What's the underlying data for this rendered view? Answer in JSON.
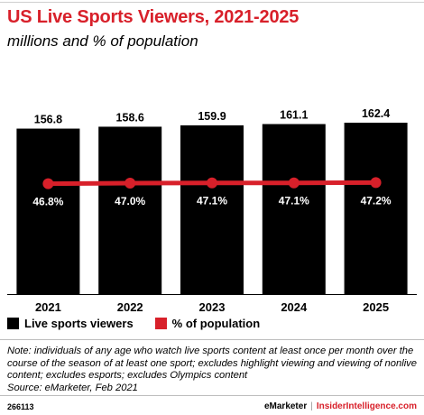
{
  "header": {
    "title": "US Live Sports Viewers, 2021-2025",
    "subtitle": "millions and % of population"
  },
  "colors": {
    "accent": "#d8202a",
    "bar": "#000000",
    "text": "#000000"
  },
  "chart_data": {
    "type": "bar",
    "categories": [
      "2021",
      "2022",
      "2023",
      "2024",
      "2025"
    ],
    "series": [
      {
        "name": "Live sports viewers",
        "values": [
          156.8,
          158.6,
          159.9,
          161.1,
          162.4
        ],
        "color": "#000000"
      },
      {
        "name": "% of population",
        "type": "line",
        "values": [
          46.8,
          47.0,
          47.1,
          47.1,
          47.2
        ],
        "color": "#d8202a"
      }
    ],
    "bar_labels": [
      "156.8",
      "158.6",
      "159.9",
      "161.1",
      "162.4"
    ],
    "line_labels": [
      "46.8%",
      "47.0%",
      "47.1%",
      "47.1%",
      "47.2%"
    ],
    "ylim": [
      0,
      162.4
    ],
    "grid": false,
    "legend_position": "bottom-left"
  },
  "legend": {
    "items": [
      {
        "label": "Live sports viewers",
        "color": "#000000"
      },
      {
        "label": "% of population",
        "color": "#d8202a"
      }
    ]
  },
  "note": {
    "text": "Note: individuals of any age who watch live sports content at least once per month over the course of the season of at least one sport; excludes highlight viewing and viewing of nonlive content; excludes esports; excludes Olympics content",
    "source": "Source: eMarketer, Feb 2021"
  },
  "footer": {
    "chart_id": "266113",
    "brand": "eMarketer",
    "separator": "|",
    "site": "InsiderIntelligence.com"
  }
}
